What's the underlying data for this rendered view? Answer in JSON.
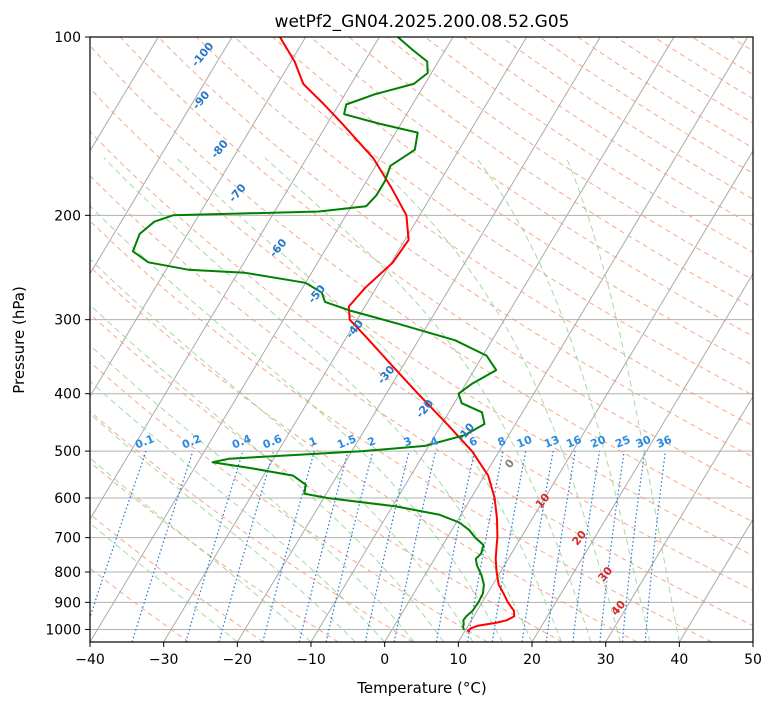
{
  "chart_data": {
    "type": "line",
    "subtype": "skew-T log-P diagram",
    "title": "wetPf2_GN04.2025.200.08.52.G05",
    "xlabel": "Temperature (°C)",
    "ylabel": "Pressure (hPa)",
    "xlim": [
      -40,
      50
    ],
    "ylim": [
      1050,
      100
    ],
    "y_scale": "log",
    "grid": true,
    "x_ticks": [
      "−40",
      "−30",
      "−20",
      "−10",
      "0",
      "10",
      "20",
      "30",
      "40",
      "50"
    ],
    "y_ticks": [
      {
        "p": 100,
        "label": "100"
      },
      {
        "p": 200,
        "label": "200"
      },
      {
        "p": 300,
        "label": "300"
      },
      {
        "p": 400,
        "label": "400"
      },
      {
        "p": 500,
        "label": "500"
      },
      {
        "p": 600,
        "label": "600"
      },
      {
        "p": 700,
        "label": "700"
      },
      {
        "p": 800,
        "label": "800"
      },
      {
        "p": 900,
        "label": "900"
      },
      {
        "p": 1000,
        "label": "1000"
      }
    ],
    "series": [
      {
        "role": "temperature",
        "color": "#ff0000",
        "points": [
          {
            "p": 1010,
            "t": 10.7
          },
          {
            "p": 1005,
            "t": 10.4
          },
          {
            "p": 995,
            "t": 10.6
          },
          {
            "p": 985,
            "t": 11.4
          },
          {
            "p": 975,
            "t": 13.5
          },
          {
            "p": 965,
            "t": 14.8
          },
          {
            "p": 950,
            "t": 15.5
          },
          {
            "p": 930,
            "t": 15.0
          },
          {
            "p": 900,
            "t": 13.5
          },
          {
            "p": 870,
            "t": 12.2
          },
          {
            "p": 840,
            "t": 10.8
          },
          {
            "p": 800,
            "t": 9.5
          },
          {
            "p": 760,
            "t": 8.3
          },
          {
            "p": 720,
            "t": 7.3
          },
          {
            "p": 700,
            "t": 6.8
          },
          {
            "p": 650,
            "t": 5.2
          },
          {
            "p": 600,
            "t": 3.2
          },
          {
            "p": 550,
            "t": 0.5
          },
          {
            "p": 500,
            "t": -3.7
          },
          {
            "p": 450,
            "t": -9.3
          },
          {
            "p": 400,
            "t": -15.7
          },
          {
            "p": 350,
            "t": -22.8
          },
          {
            "p": 320,
            "t": -27.5
          },
          {
            "p": 300,
            "t": -31.0
          },
          {
            "p": 285,
            "t": -32.2
          },
          {
            "p": 265,
            "t": -31.5
          },
          {
            "p": 240,
            "t": -29.8
          },
          {
            "p": 220,
            "t": -29.5
          },
          {
            "p": 200,
            "t": -31.8
          },
          {
            "p": 180,
            "t": -36.0
          },
          {
            "p": 160,
            "t": -41.0
          },
          {
            "p": 140,
            "t": -48.0
          },
          {
            "p": 130,
            "t": -52.0
          },
          {
            "p": 120,
            "t": -56.5
          },
          {
            "p": 110,
            "t": -59.5
          },
          {
            "p": 100,
            "t": -63.5
          }
        ]
      },
      {
        "role": "dewpoint",
        "color": "#008000",
        "points": [
          {
            "p": 1002,
            "t": 9.8
          },
          {
            "p": 990,
            "t": 9.4
          },
          {
            "p": 980,
            "t": 9.3
          },
          {
            "p": 965,
            "t": 8.9
          },
          {
            "p": 950,
            "t": 9.0
          },
          {
            "p": 930,
            "t": 9.4
          },
          {
            "p": 900,
            "t": 9.5
          },
          {
            "p": 870,
            "t": 9.4
          },
          {
            "p": 840,
            "t": 8.8
          },
          {
            "p": 810,
            "t": 7.7
          },
          {
            "p": 780,
            "t": 6.3
          },
          {
            "p": 760,
            "t": 5.6
          },
          {
            "p": 745,
            "t": 5.9
          },
          {
            "p": 720,
            "t": 5.5
          },
          {
            "p": 700,
            "t": 3.8
          },
          {
            "p": 680,
            "t": 2.4
          },
          {
            "p": 660,
            "t": 0.4
          },
          {
            "p": 640,
            "t": -3.0
          },
          {
            "p": 620,
            "t": -9.5
          },
          {
            "p": 600,
            "t": -19.5
          },
          {
            "p": 590,
            "t": -23.0
          },
          {
            "p": 570,
            "t": -23.5
          },
          {
            "p": 550,
            "t": -26.0
          },
          {
            "p": 535,
            "t": -32.0
          },
          {
            "p": 522,
            "t": -38.0
          },
          {
            "p": 515,
            "t": -36.0
          },
          {
            "p": 508,
            "t": -28.0
          },
          {
            "p": 500,
            "t": -18.5
          },
          {
            "p": 490,
            "t": -10.5
          },
          {
            "p": 470,
            "t": -6.0
          },
          {
            "p": 450,
            "t": -4.2
          },
          {
            "p": 430,
            "t": -5.5
          },
          {
            "p": 415,
            "t": -9.0
          },
          {
            "p": 400,
            "t": -10.2
          },
          {
            "p": 385,
            "t": -9.2
          },
          {
            "p": 365,
            "t": -7.0
          },
          {
            "p": 345,
            "t": -9.5
          },
          {
            "p": 325,
            "t": -15.0
          },
          {
            "p": 305,
            "t": -24.0
          },
          {
            "p": 290,
            "t": -31.5
          },
          {
            "p": 280,
            "t": -35.8
          },
          {
            "p": 270,
            "t": -37.0
          },
          {
            "p": 260,
            "t": -40.0
          },
          {
            "p": 250,
            "t": -49.0
          },
          {
            "p": 247,
            "t": -57.0
          },
          {
            "p": 240,
            "t": -63.0
          },
          {
            "p": 230,
            "t": -66.0
          },
          {
            "p": 215,
            "t": -66.5
          },
          {
            "p": 205,
            "t": -65.5
          },
          {
            "p": 200,
            "t": -63.5
          },
          {
            "p": 197,
            "t": -44.0
          },
          {
            "p": 193,
            "t": -38.0
          },
          {
            "p": 185,
            "t": -37.5
          },
          {
            "p": 175,
            "t": -37.5
          },
          {
            "p": 165,
            "t": -38.0
          },
          {
            "p": 155,
            "t": -36.0
          },
          {
            "p": 145,
            "t": -37.0
          },
          {
            "p": 140,
            "t": -43.0
          },
          {
            "p": 135,
            "t": -48.5
          },
          {
            "p": 130,
            "t": -49.0
          },
          {
            "p": 125,
            "t": -46.0
          },
          {
            "p": 120,
            "t": -41.5
          },
          {
            "p": 115,
            "t": -40.5
          },
          {
            "p": 110,
            "t": -41.5
          },
          {
            "p": 105,
            "t": -44.5
          },
          {
            "p": 100,
            "t": -47.5
          }
        ]
      }
    ],
    "reference_lines": {
      "isotherms_step": 10,
      "isotherm_color": "#aaaaaa",
      "dry_adiabat_color": "#f5a07a",
      "moist_adiabat_color": "#8fd08f",
      "mixing_ratio_color": "#1f77d4",
      "mixing_ratios_gkg": [
        "0.1",
        "0.2",
        "0.4",
        "0.6",
        "1",
        "1.5",
        "2",
        "3",
        "4",
        "6",
        "8",
        "10",
        "13",
        "16",
        "20",
        "25",
        "30",
        "36"
      ],
      "special_tan_curve_color": "#c8a884"
    },
    "annotations": {
      "blue_labels": [
        {
          "text": "-100",
          "p": 108,
          "t": "-72"
        },
        {
          "text": "-90",
          "p": 129,
          "t": "-68.5"
        },
        {
          "text": "-80",
          "p": 156,
          "t": "-62"
        },
        {
          "text": "-70",
          "p": 185,
          "t": "-56"
        },
        {
          "text": "-60",
          "p": 229,
          "t": "-46"
        },
        {
          "text": "-50",
          "p": 274,
          "t": "-37"
        },
        {
          "text": "-40",
          "p": 314,
          "t": "-29"
        },
        {
          "text": "-30",
          "p": 375,
          "t": "-21"
        },
        {
          "text": "-20",
          "p": 428,
          "t": "-13"
        },
        {
          "text": "-10",
          "p": 469,
          "t": "-5.5"
        }
      ],
      "grey_label": {
        "text": "0",
        "p": 530,
        "t": "3"
      },
      "red_labels": [
        {
          "text": "10",
          "p": 612,
          "t": "10.5"
        },
        {
          "text": "20",
          "p": 707,
          "t": "18.5"
        },
        {
          "text": "30",
          "p": 814,
          "t": "25"
        },
        {
          "text": "40",
          "p": 928,
          "t": "29.5"
        }
      ]
    }
  }
}
